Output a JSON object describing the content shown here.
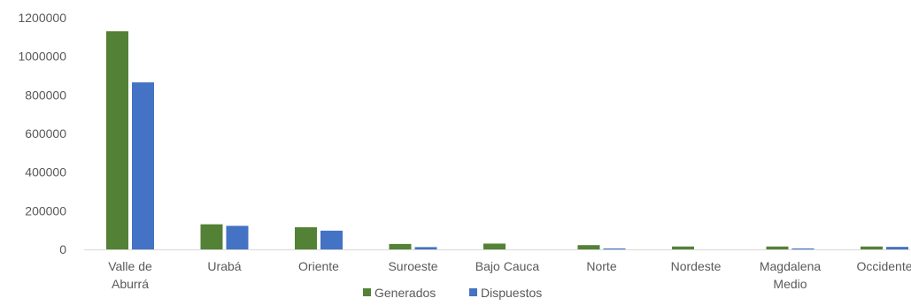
{
  "chart_data": {
    "type": "bar",
    "title": "",
    "xlabel": "",
    "ylabel": "",
    "ylim": [
      0,
      1200000
    ],
    "yticks": [
      0,
      200000,
      400000,
      600000,
      800000,
      1000000,
      1200000
    ],
    "ytick_labels": [
      "0",
      "200000",
      "400000",
      "600000",
      "800000",
      "1000000",
      "1200000"
    ],
    "grid": false,
    "legend_position": "bottom",
    "categories": [
      [
        "Valle de",
        "Aburrá"
      ],
      [
        "Urabá"
      ],
      [
        "Oriente"
      ],
      [
        "Suroeste"
      ],
      [
        "Bajo Cauca"
      ],
      [
        "Norte"
      ],
      [
        "Nordeste"
      ],
      [
        "Magdalena",
        "Medio"
      ],
      [
        "Occidente"
      ]
    ],
    "series": [
      {
        "name": "Generados",
        "color": "#538135",
        "values": [
          1130000,
          130000,
          115000,
          28000,
          30000,
          22000,
          15000,
          15000,
          15000
        ]
      },
      {
        "name": "Dispuestos",
        "color": "#4472C4",
        "values": [
          865000,
          122000,
          97000,
          12000,
          0,
          5000,
          0,
          5000,
          13000
        ]
      }
    ]
  }
}
